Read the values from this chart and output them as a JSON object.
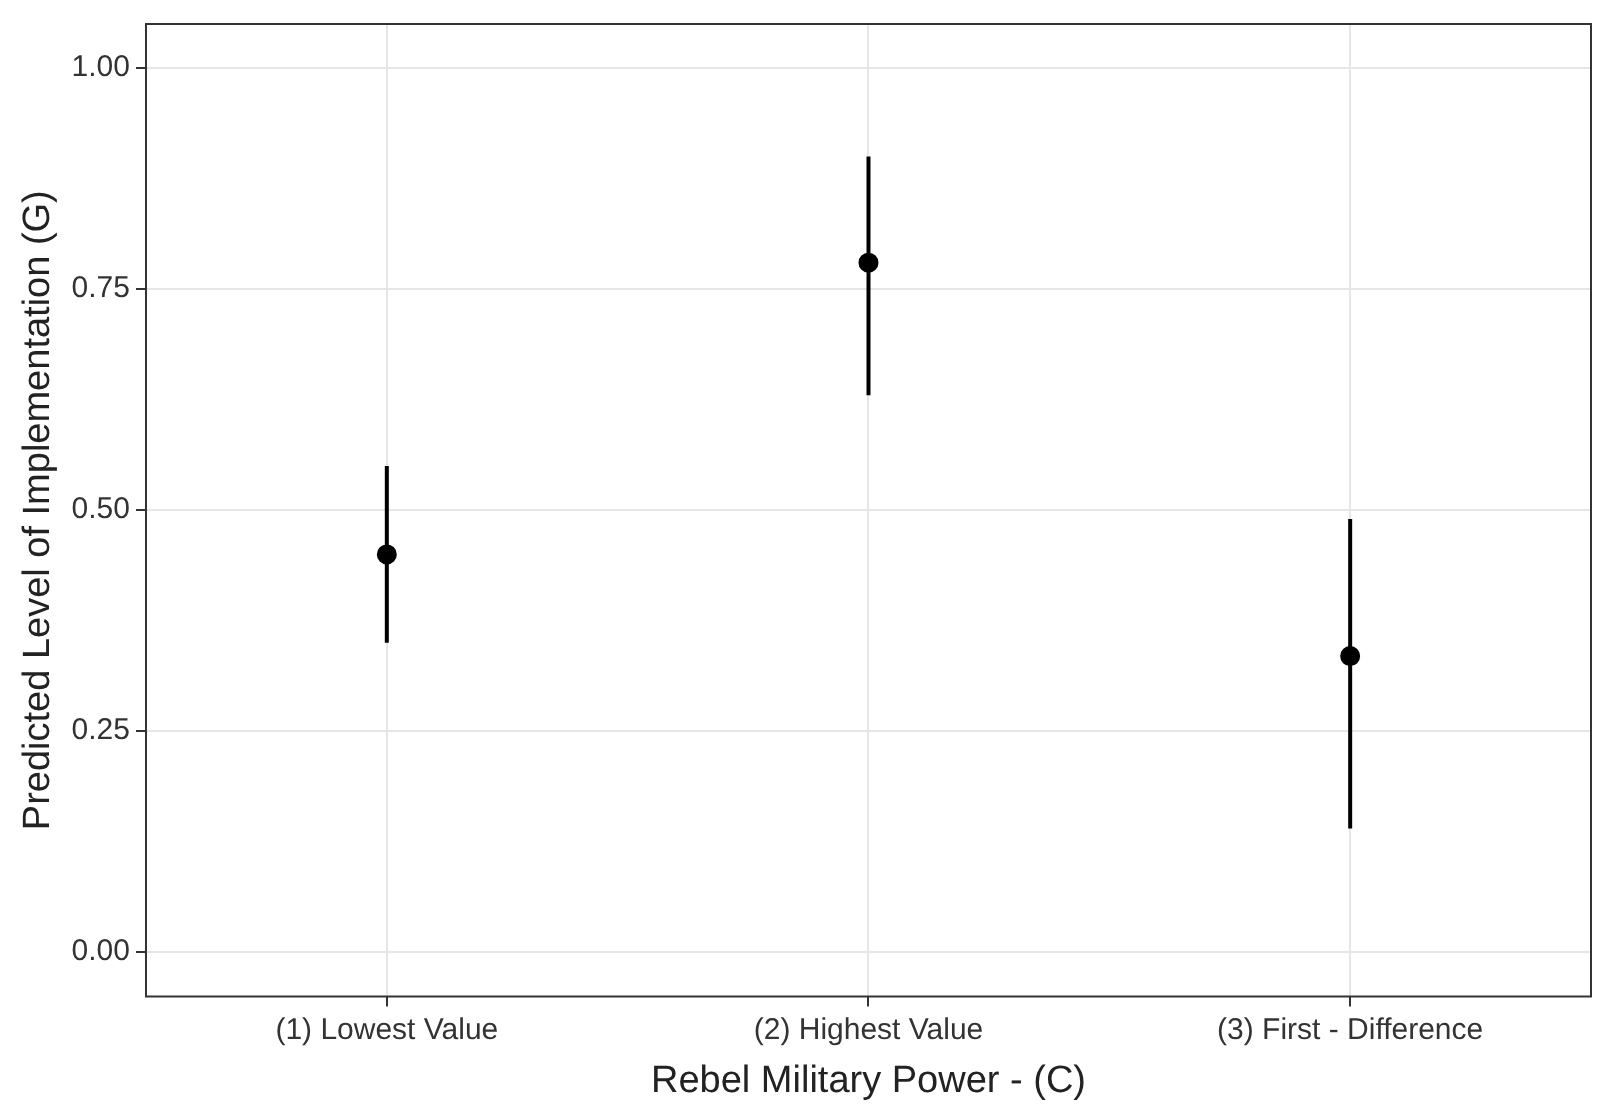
{
  "chart_data": {
    "type": "scatter",
    "xlabel": "Rebel Military Power - (C)",
    "ylabel": "Predicted Level of Implementation (G)",
    "categories": [
      "(1) Lowest Value",
      "(2) Highest Value",
      "(3) First - Difference"
    ],
    "values": [
      0.45,
      0.78,
      0.335
    ],
    "errors": [
      [
        0.35,
        0.55
      ],
      [
        0.63,
        0.9
      ],
      [
        0.14,
        0.49
      ]
    ],
    "color": "#000000",
    "marker": "circle",
    "ylim": [
      -0.05,
      1.05
    ],
    "yticks": [
      {
        "value": 0,
        "label": "0.00"
      },
      {
        "value": 0.25,
        "label": "0.25"
      },
      {
        "value": 0.5,
        "label": "0.50"
      },
      {
        "value": 0.75,
        "label": "0.75"
      },
      {
        "value": 1,
        "label": "1.00"
      }
    ],
    "grid": true,
    "legend": false
  }
}
